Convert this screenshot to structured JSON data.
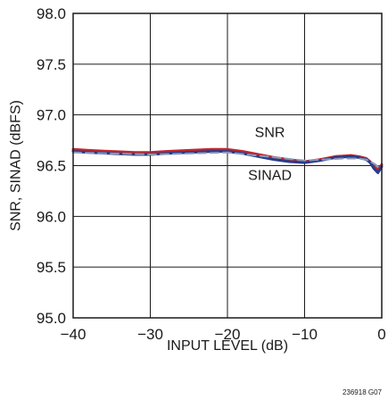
{
  "chart_data": {
    "type": "line",
    "title": "",
    "xlabel": "INPUT LEVEL (dB)",
    "ylabel": "SNR, SINAD (dBFS)",
    "xlim": [
      -40,
      0
    ],
    "ylim": [
      95.0,
      98.0
    ],
    "xticks": [
      -40,
      -30,
      -20,
      -10,
      0
    ],
    "yticks": [
      95.0,
      95.5,
      96.0,
      96.5,
      97.0,
      97.5,
      98.0
    ],
    "xtick_labels": [
      "−40",
      "−30",
      "−20",
      "−10",
      "0"
    ],
    "ytick_labels": [
      "95.0",
      "95.5",
      "96.0",
      "96.5",
      "97.0",
      "97.5",
      "98.0"
    ],
    "grid": true,
    "series": [
      {
        "name": "SNR",
        "color": "#c0282d",
        "x": [
          -40,
          -38,
          -35,
          -32,
          -30,
          -28,
          -25,
          -22,
          -20,
          -18,
          -16,
          -14,
          -12,
          -10,
          -8,
          -6,
          -4,
          -3,
          -2,
          -1.5,
          -1,
          -0.5,
          0
        ],
        "y": [
          96.66,
          96.65,
          96.64,
          96.63,
          96.63,
          96.64,
          96.65,
          96.66,
          96.66,
          96.64,
          96.61,
          96.58,
          96.56,
          96.54,
          96.56,
          96.59,
          96.6,
          96.59,
          96.57,
          96.54,
          96.49,
          96.46,
          96.51
        ]
      },
      {
        "name": "SINAD",
        "color": "#2a3a8c",
        "x": [
          -40,
          -38,
          -35,
          -32,
          -30,
          -28,
          -25,
          -22,
          -20,
          -18,
          -16,
          -14,
          -12,
          -10,
          -8,
          -6,
          -4,
          -3,
          -2,
          -1.5,
          -1,
          -0.5,
          0
        ],
        "y": [
          96.64,
          96.63,
          96.62,
          96.61,
          96.61,
          96.62,
          96.63,
          96.64,
          96.64,
          96.62,
          96.59,
          96.56,
          96.54,
          96.53,
          96.55,
          96.58,
          96.59,
          96.58,
          96.56,
          96.53,
          96.47,
          96.43,
          96.49
        ]
      },
      {
        "name": "",
        "style": "dashed",
        "color": "#8a9ab8",
        "x": [
          -40,
          -35,
          -30,
          -25,
          -20,
          -15,
          -10,
          -5,
          -3,
          -2,
          -1,
          -0.5,
          0
        ],
        "y": [
          96.63,
          96.62,
          96.61,
          96.62,
          96.63,
          96.59,
          96.55,
          96.57,
          96.57,
          96.56,
          96.52,
          96.49,
          96.52
        ]
      }
    ],
    "annotations": [
      {
        "text": "SNR",
        "x": -14.5,
        "y": 96.78
      },
      {
        "text": "SINAD",
        "x": -14.5,
        "y": 96.36
      }
    ]
  },
  "figure_id": "236918 G07"
}
